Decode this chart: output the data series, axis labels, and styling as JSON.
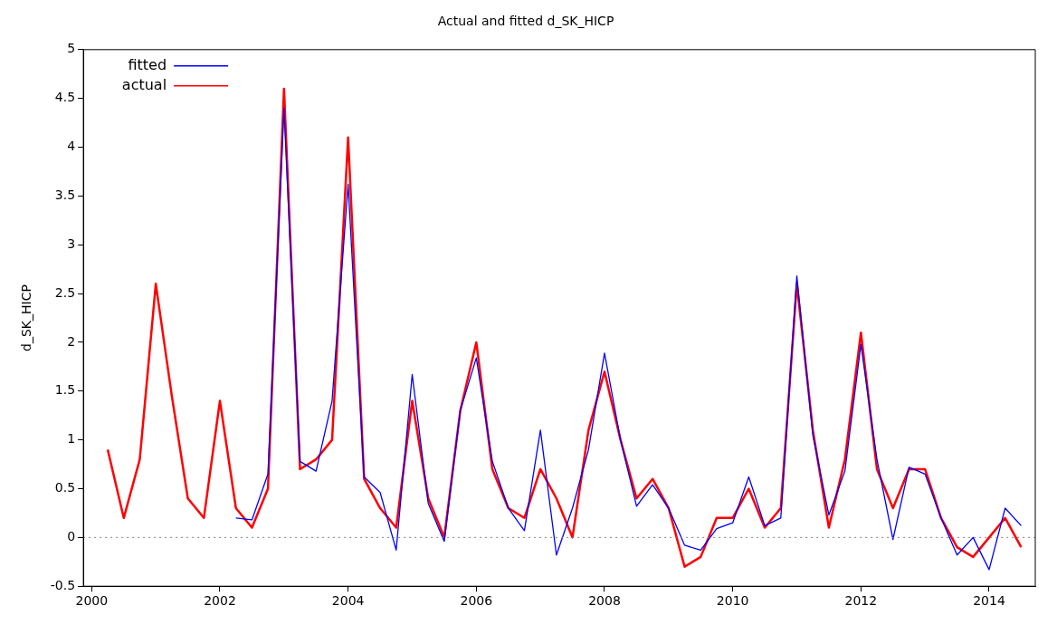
{
  "chart_data": {
    "type": "line",
    "title": "Actual and fitted d_SK_HICP",
    "ylabel": "d_SK_HICP",
    "x": [
      2000.25,
      2000.5,
      2000.75,
      2001,
      2001.25,
      2001.5,
      2001.75,
      2002,
      2002.25,
      2002.5,
      2002.75,
      2003,
      2003.25,
      2003.5,
      2003.75,
      2004,
      2004.25,
      2004.5,
      2004.75,
      2005,
      2005.25,
      2005.5,
      2005.75,
      2006,
      2006.25,
      2006.5,
      2006.75,
      2007,
      2007.25,
      2007.5,
      2007.75,
      2008,
      2008.25,
      2008.5,
      2008.75,
      2009,
      2009.25,
      2009.5,
      2009.75,
      2010,
      2010.25,
      2010.5,
      2010.75,
      2011,
      2011.25,
      2011.5,
      2011.75,
      2012,
      2012.25,
      2012.5,
      2012.75,
      2013,
      2013.25,
      2013.5,
      2013.75,
      2014,
      2014.25,
      2014.5
    ],
    "series": [
      {
        "name": "fitted",
        "color": "#0000ff",
        "values": [
          null,
          null,
          null,
          null,
          null,
          null,
          null,
          null,
          0.2,
          0.18,
          0.65,
          4.4,
          0.78,
          0.68,
          1.4,
          3.62,
          0.62,
          0.46,
          -0.13,
          1.67,
          0.35,
          -0.04,
          1.3,
          1.84,
          0.78,
          0.3,
          0.07,
          1.1,
          -0.18,
          0.3,
          0.9,
          1.89,
          1.0,
          0.32,
          0.54,
          0.3,
          -0.08,
          -0.13,
          0.09,
          0.15,
          0.62,
          0.12,
          0.2,
          2.68,
          1.05,
          0.23,
          0.68,
          1.98,
          0.8,
          -0.02,
          0.72,
          0.65,
          0.2,
          -0.18,
          0.0,
          -0.33,
          0.3,
          0.12
        ]
      },
      {
        "name": "actual",
        "color": "#ff0000",
        "values": [
          0.9,
          0.2,
          0.8,
          2.6,
          1.45,
          0.4,
          0.2,
          1.4,
          0.3,
          0.1,
          0.5,
          4.6,
          0.7,
          0.8,
          1.0,
          4.1,
          0.6,
          0.3,
          0.1,
          1.4,
          0.4,
          0.0,
          1.3,
          2.0,
          0.7,
          0.3,
          0.2,
          0.7,
          0.4,
          0.0,
          1.1,
          1.7,
          1.0,
          0.4,
          0.6,
          0.3,
          -0.3,
          -0.2,
          0.2,
          0.2,
          0.5,
          0.1,
          0.3,
          2.6,
          1.1,
          0.1,
          0.8,
          2.1,
          0.7,
          0.3,
          0.7,
          0.7,
          0.2,
          -0.1,
          -0.2,
          0.0,
          0.2,
          -0.1
        ]
      }
    ],
    "xlim": [
      1999.87,
      2014.72
    ],
    "xticks": [
      2000,
      2002,
      2004,
      2006,
      2008,
      2010,
      2012,
      2014
    ],
    "ylim": [
      -0.5,
      5
    ],
    "yticks": [
      -0.5,
      0,
      0.5,
      1,
      1.5,
      2,
      2.5,
      3,
      3.5,
      4,
      4.5,
      5
    ],
    "ref_lines": [
      {
        "axis": "y",
        "value": 0,
        "color": "#808080",
        "line_style": "dotted"
      }
    ],
    "legend": "top left",
    "grid": false,
    "marker": "none",
    "line_style": "solid"
  }
}
